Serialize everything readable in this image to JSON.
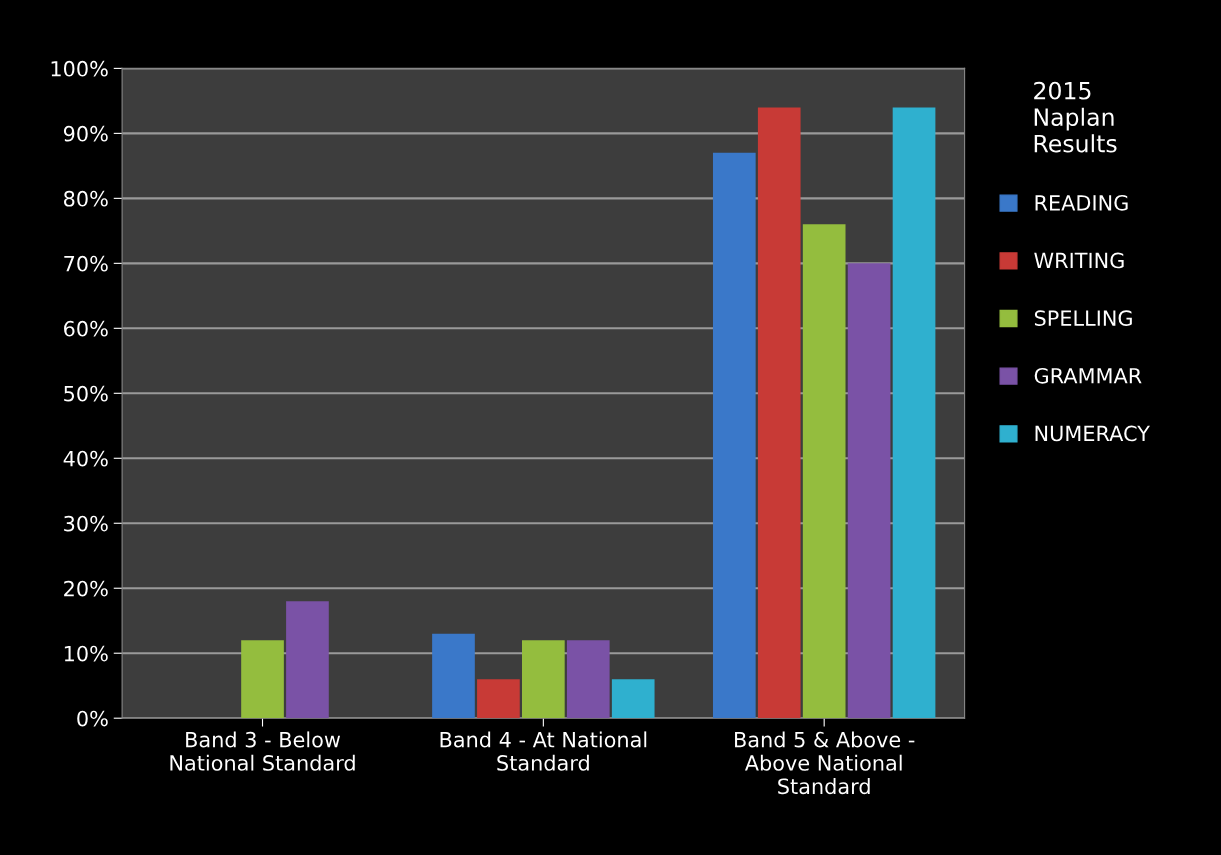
{
  "chart_data": {
    "type": "bar",
    "categories": [
      "Band 3 - Below\nNational Standard",
      "Band 4 - At National\nStandard",
      "Band 5 & Above -\nAbove National\nStandard"
    ],
    "series": [
      {
        "name": "READING",
        "color": "#3a78c9",
        "values": [
          0,
          13,
          87
        ]
      },
      {
        "name": "WRITING",
        "color": "#c83a36",
        "values": [
          0,
          6,
          94
        ]
      },
      {
        "name": "SPELLING",
        "color": "#94bd3e",
        "values": [
          12,
          12,
          76
        ]
      },
      {
        "name": "GRAMMAR",
        "color": "#7a52a6",
        "values": [
          18,
          12,
          70
        ]
      },
      {
        "name": "NUMERACY",
        "color": "#2fb0cf",
        "values": [
          0,
          6,
          94
        ]
      }
    ],
    "ylim": [
      0,
      100
    ],
    "yticks": [
      {
        "value": 0,
        "label": "0%"
      },
      {
        "value": 10,
        "label": "10%"
      },
      {
        "value": 20,
        "label": "20%"
      },
      {
        "value": 30,
        "label": "30%"
      },
      {
        "value": 40,
        "label": "40%"
      },
      {
        "value": 50,
        "label": "50%"
      },
      {
        "value": 60,
        "label": "60%"
      },
      {
        "value": 70,
        "label": "70%"
      },
      {
        "value": 80,
        "label": "80%"
      },
      {
        "value": 90,
        "label": "90%"
      },
      {
        "value": 100,
        "label": "100%"
      }
    ],
    "grid": "y",
    "legend": "right",
    "legend_title": "2015\nNaplan\nResults"
  }
}
